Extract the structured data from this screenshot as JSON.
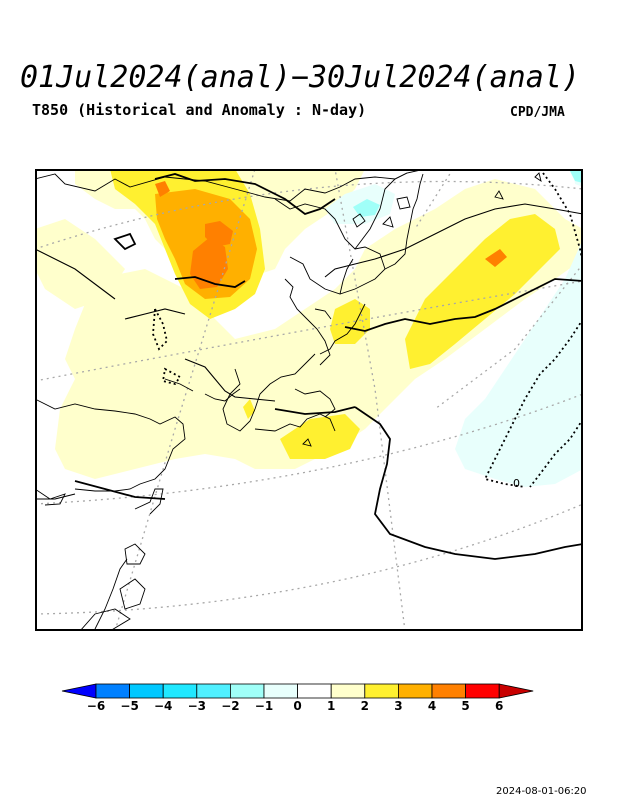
{
  "header": {
    "title": "01Jul2024(anal)−30Jul2024(anal)",
    "subtitle": "T850 (Historical and Anomaly : N-day)",
    "credit": "CPD/JMA"
  },
  "map": {
    "contour_labels": [
      "0"
    ]
  },
  "colorbar": {
    "labels": [
      "−6",
      "−5",
      "−4",
      "−3",
      "−2",
      "−1",
      "0",
      "1",
      "2",
      "3",
      "4",
      "5",
      "6"
    ],
    "colors": [
      "#0000ff",
      "#0080ff",
      "#00c8ff",
      "#20e8ff",
      "#50f0ff",
      "#a0fff8",
      "#e8fffc",
      "#ffffff",
      "#ffffcc",
      "#fff030",
      "#ffb000",
      "#ff8000",
      "#ff0000",
      "#c80000"
    ]
  },
  "footer": {
    "timestamp": "2024-08-01-06:20"
  }
}
